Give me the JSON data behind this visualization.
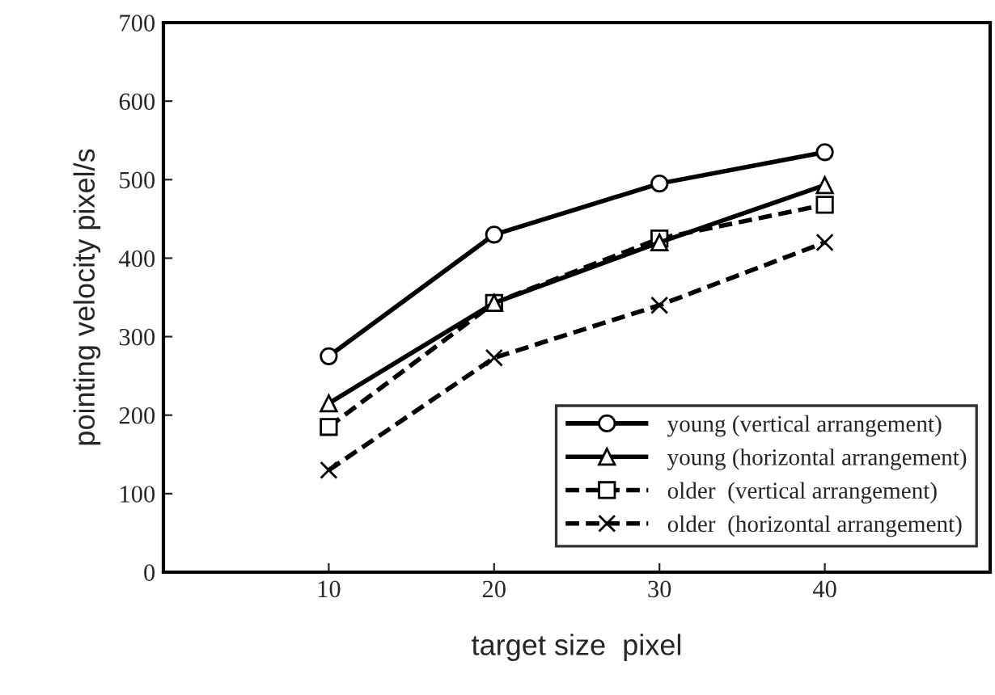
{
  "chart_data": {
    "type": "line",
    "xlabel": "target size  pixel",
    "ylabel": "pointing velocity pixel/s",
    "x": [
      10,
      20,
      30,
      40
    ],
    "xlim": [
      0,
      50
    ],
    "xticks": [
      10,
      20,
      30,
      40
    ],
    "ylim": [
      0,
      700
    ],
    "yticks": [
      0,
      100,
      200,
      300,
      400,
      500,
      600,
      700
    ],
    "grid": false,
    "legend": "bottom right",
    "series": [
      {
        "name": "young (vertical arrangement)",
        "color": "#000000",
        "values": [
          275,
          430,
          495,
          535
        ],
        "marker": "circle",
        "line_style": "solid"
      },
      {
        "name": "young (horizontal arrangement)",
        "color": "#000000",
        "values": [
          215,
          343,
          420,
          493
        ],
        "marker": "triangle",
        "line_style": "solid"
      },
      {
        "name": "older  (vertical arrangement)",
        "color": "#000000",
        "values": [
          185,
          343,
          425,
          468
        ],
        "marker": "square",
        "line_style": "dashed"
      },
      {
        "name": "older  (horizontal arrangement)",
        "color": "#000000",
        "values": [
          130,
          273,
          340,
          420
        ],
        "marker": "cross",
        "line_style": "dashed"
      }
    ]
  }
}
